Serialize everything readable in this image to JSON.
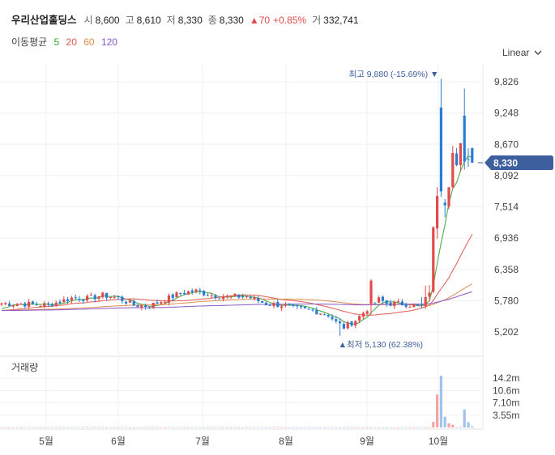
{
  "header": {
    "name": "우리산업홀딩스",
    "open_label": "시",
    "open": "8,600",
    "high_label": "고",
    "high": "8,610",
    "low_label": "저",
    "low": "8,330",
    "close_label": "종",
    "close": "8,330",
    "change": "▲70",
    "change_pct": "+0.85%",
    "volume_label": "거",
    "volume": "332,741"
  },
  "moving_average": {
    "label": "이동평균",
    "periods": [
      {
        "period": "5",
        "color": "#3aa53a"
      },
      {
        "period": "20",
        "color": "#e0574f"
      },
      {
        "period": "60",
        "color": "#e08a4a"
      },
      {
        "period": "120",
        "color": "#8a55c8"
      }
    ]
  },
  "scale_select": {
    "value": "Linear",
    "icon": "chevron-down-icon"
  },
  "colors": {
    "up": "#e24b4b",
    "down": "#2b7bd4",
    "price_tag": "#3d5f9e",
    "annotation": "#3d5f9e"
  },
  "chart_data": {
    "type": "candlestick",
    "y_ticks": [
      "9,826",
      "9,248",
      "8,670",
      "8,092",
      "7,514",
      "6,936",
      "6,358",
      "5,780",
      "5,202"
    ],
    "ylim": [
      4800,
      10300
    ],
    "x_ticks": [
      "5월",
      "6월",
      "7월",
      "8월",
      "9월",
      "10월"
    ],
    "current_price": "8,330",
    "annotations": {
      "high": {
        "label": "최고",
        "value": "9,880",
        "pct": "(-15.69%)"
      },
      "low": {
        "label": "최저",
        "value": "5,130",
        "pct": "(62.38%)"
      }
    },
    "volume": {
      "label": "거래량",
      "y_ticks": [
        "14.2m",
        "10.6m",
        "7.10m",
        "3.55m"
      ],
      "max": 17000000
    },
    "grid": true
  }
}
